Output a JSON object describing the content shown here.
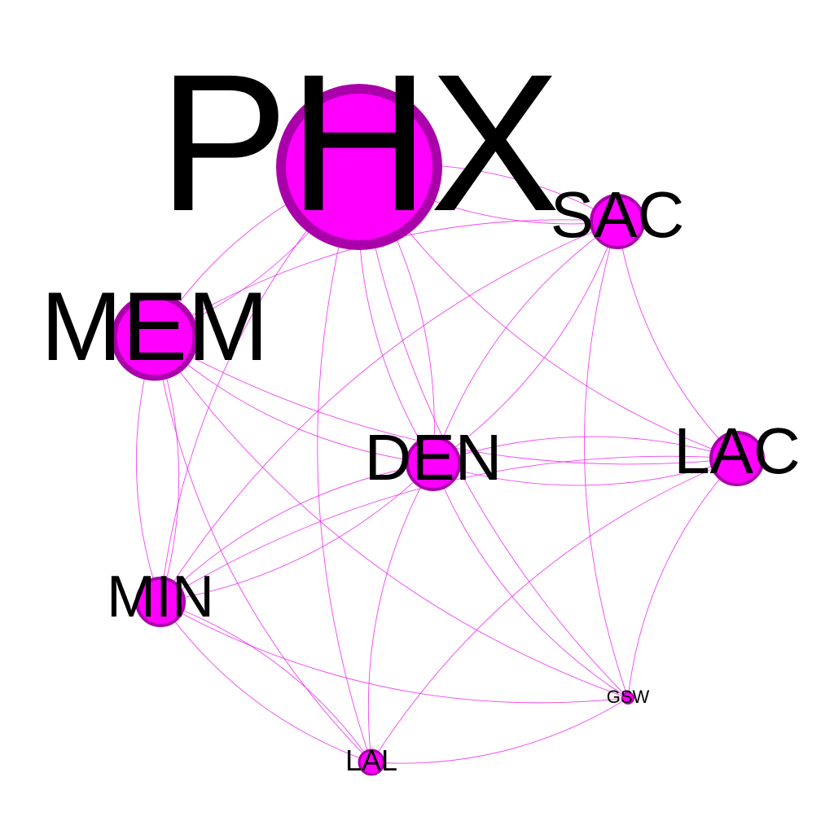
{
  "colors": {
    "node_fill": "#ff00ff",
    "node_stroke": "#aa00aa",
    "edge": "#ee22ee",
    "label": "#000000",
    "background": "#ffffff"
  },
  "nodes": [
    {
      "id": "PHX",
      "label": "PHX"
    },
    {
      "id": "SAC",
      "label": "SAC"
    },
    {
      "id": "MEM",
      "label": "MEM"
    },
    {
      "id": "DEN",
      "label": "DEN"
    },
    {
      "id": "LAC",
      "label": "LAC"
    },
    {
      "id": "MIN",
      "label": "MIN"
    },
    {
      "id": "GSW",
      "label": "GSW"
    },
    {
      "id": "LAL",
      "label": "LAL"
    }
  ],
  "edges": [
    [
      "PHX",
      "SAC"
    ],
    [
      "PHX",
      "SAC"
    ],
    [
      "PHX",
      "MEM"
    ],
    [
      "PHX",
      "MEM"
    ],
    [
      "PHX",
      "DEN"
    ],
    [
      "PHX",
      "DEN"
    ],
    [
      "PHX",
      "LAC"
    ],
    [
      "PHX",
      "MIN"
    ],
    [
      "PHX",
      "LAL"
    ],
    [
      "PHX",
      "GSW"
    ],
    [
      "SAC",
      "MEM"
    ],
    [
      "SAC",
      "DEN"
    ],
    [
      "SAC",
      "DEN"
    ],
    [
      "SAC",
      "LAC"
    ],
    [
      "SAC",
      "MIN"
    ],
    [
      "SAC",
      "GSW"
    ],
    [
      "MEM",
      "DEN"
    ],
    [
      "MEM",
      "LAC"
    ],
    [
      "MEM",
      "MIN"
    ],
    [
      "MEM",
      "MIN"
    ],
    [
      "MEM",
      "GSW"
    ],
    [
      "MEM",
      "LAL"
    ],
    [
      "DEN",
      "LAC"
    ],
    [
      "DEN",
      "LAC"
    ],
    [
      "DEN",
      "MIN"
    ],
    [
      "DEN",
      "MIN"
    ],
    [
      "DEN",
      "GSW"
    ],
    [
      "DEN",
      "LAL"
    ],
    [
      "LAC",
      "MIN"
    ],
    [
      "LAC",
      "GSW"
    ],
    [
      "LAC",
      "LAL"
    ],
    [
      "MIN",
      "LAL"
    ],
    [
      "MIN",
      "LAL"
    ],
    [
      "MIN",
      "GSW"
    ],
    [
      "LAL",
      "GSW"
    ]
  ]
}
